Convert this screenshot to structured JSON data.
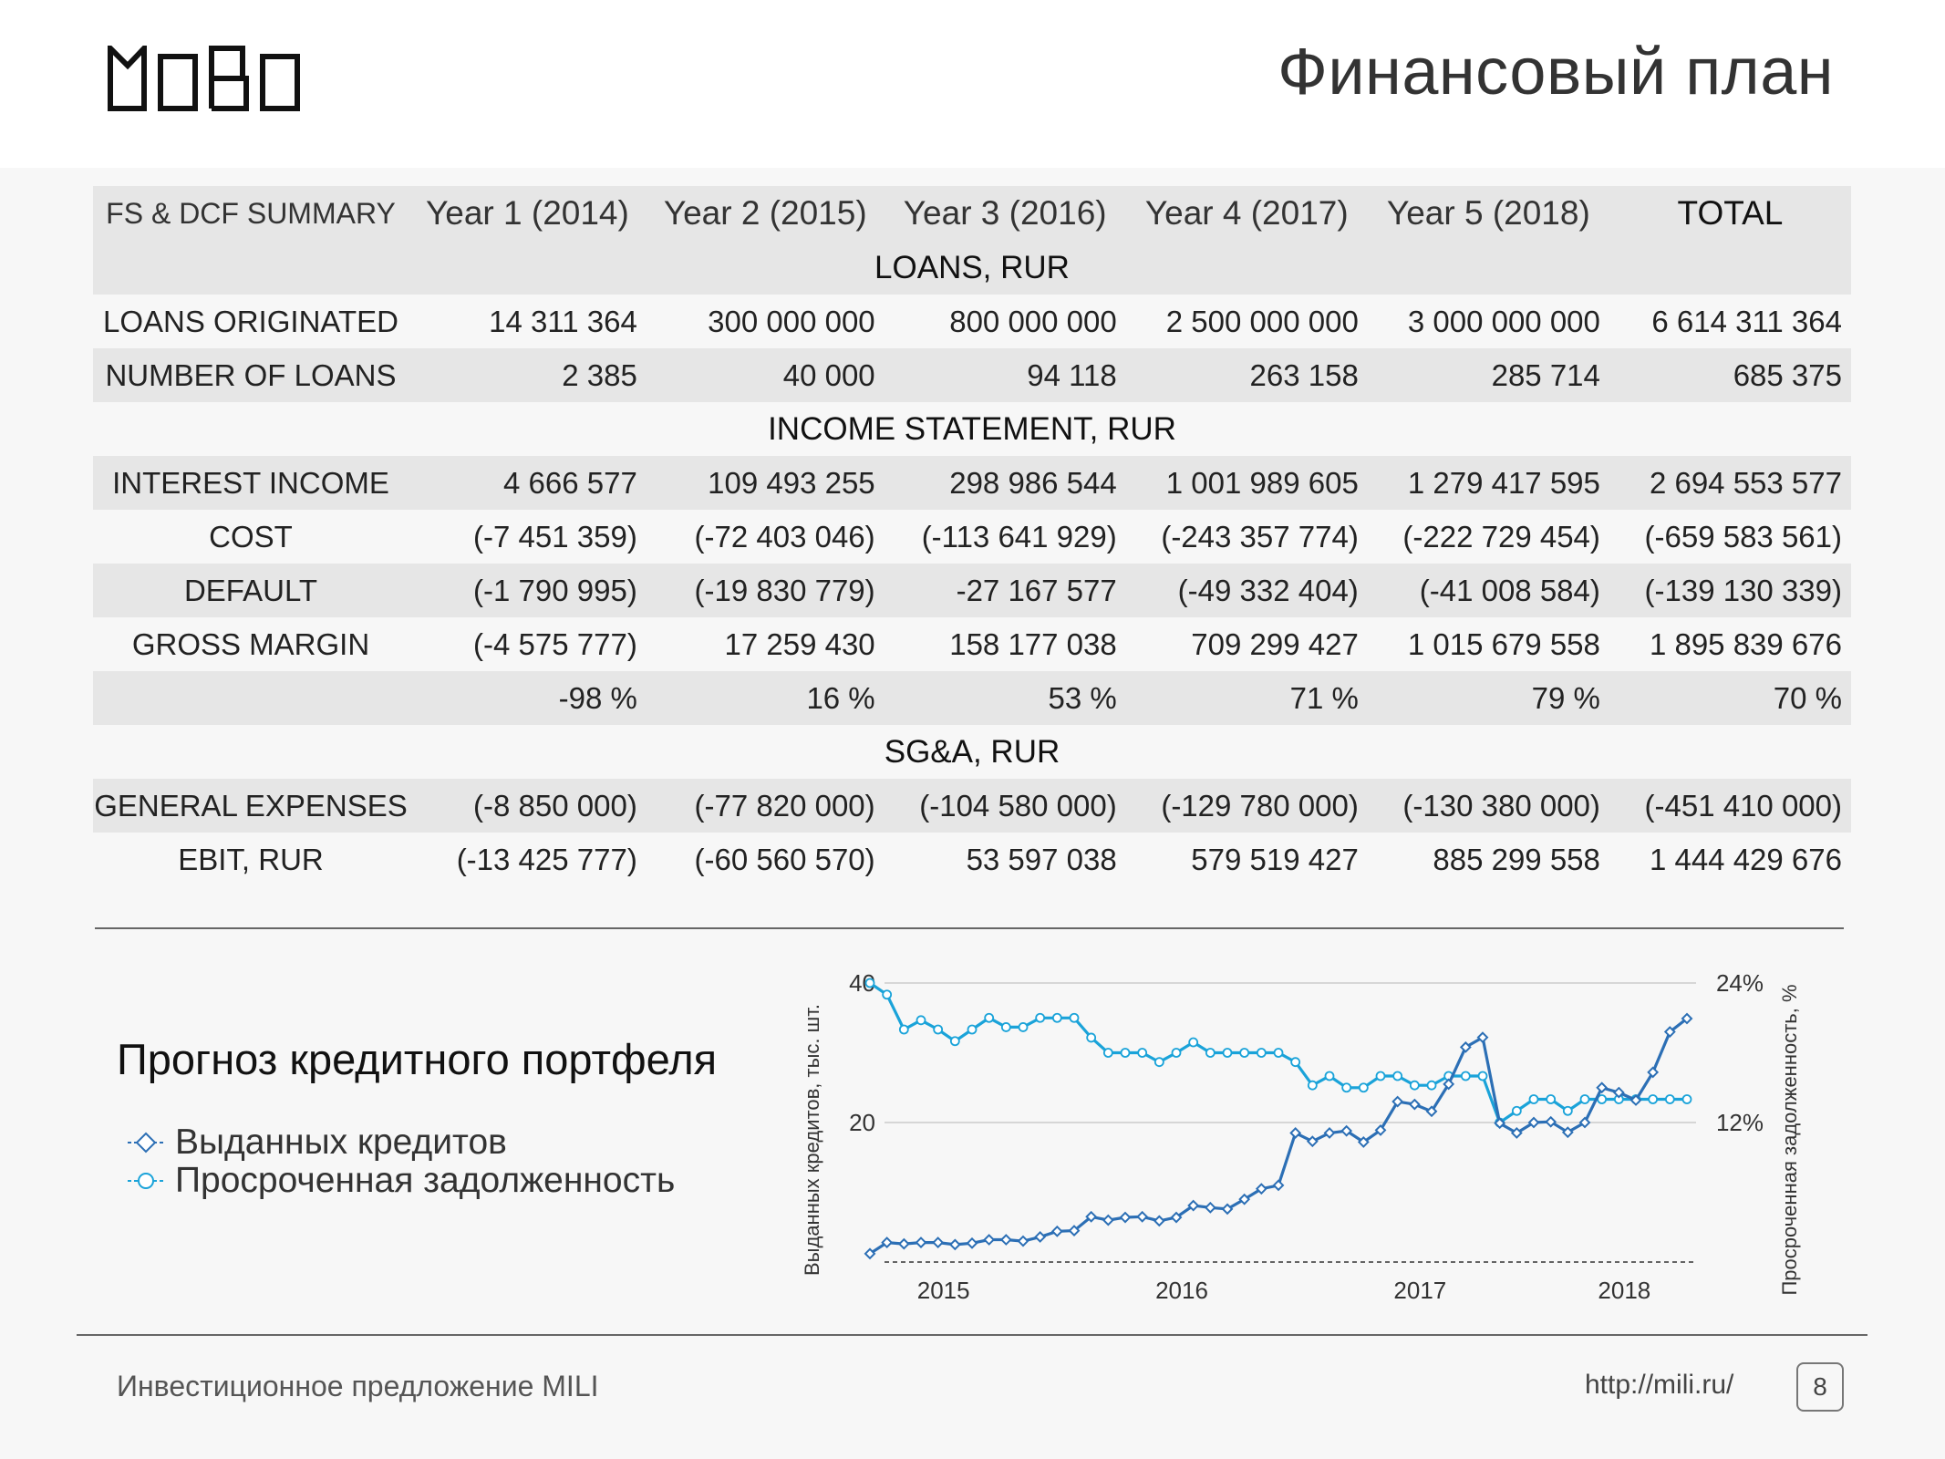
{
  "header": {
    "logo_text": "MILI",
    "title": "Финансовый план"
  },
  "table": {
    "header": {
      "label": "FS & DCF  SUMMARY",
      "years": [
        "Year 1 (2014)",
        "Year 2 (2015)",
        "Year 3 (2016)",
        "Year 4 (2017)",
        "Year 5 (2018)"
      ],
      "total": "TOTAL"
    },
    "sections": {
      "loans": "LOANS, RUR",
      "income": "INCOME STATEMENT, RUR",
      "sga": "SG&A, RUR"
    },
    "rows": {
      "loans_originated": {
        "label": "LOANS ORIGINATED",
        "values": [
          "14 311 364",
          "300 000 000",
          "800 000 000",
          "2 500 000 000",
          "3 000 000 000",
          "6 614 311 364"
        ]
      },
      "number_of_loans": {
        "label": "NUMBER OF LOANS",
        "values": [
          "2 385",
          "40 000",
          "94 118",
          "263 158",
          "285 714",
          "685 375"
        ]
      },
      "interest_income": {
        "label": "INTEREST INCOME",
        "values": [
          "4 666 577",
          "109 493 255",
          "298 986 544",
          "1 001 989 605",
          "1 279 417 595",
          "2 694 553 577"
        ]
      },
      "cost": {
        "label": "COST",
        "values": [
          "(-7 451 359)",
          "(-72 403 046)",
          "(-113 641 929)",
          "(-243 357 774)",
          "(-222 729 454)",
          "(-659 583 561)"
        ]
      },
      "default": {
        "label": "DEFAULT",
        "values": [
          "(-1 790 995)",
          "(-19 830 779)",
          "-27 167 577",
          "(-49 332 404)",
          "(-41 008 584)",
          "(-139 130 339)"
        ]
      },
      "gross_margin": {
        "label": "GROSS MARGIN",
        "values": [
          "(-4 575 777)",
          "17 259 430",
          "158 177 038",
          "709 299 427",
          "1 015 679 558",
          "1 895 839 676"
        ]
      },
      "gross_margin_pct": {
        "label": "",
        "values": [
          "-98 %",
          "16 %",
          "53 %",
          "71 %",
          "79 %",
          "70 %"
        ]
      },
      "general_expenses": {
        "label": "GENERAL EXPENSES",
        "values": [
          "(-8 850 000)",
          "(-77 820 000)",
          "(-104 580 000)",
          "(-129 780 000)",
          "(-130 380 000)",
          "(-451 410 000)"
        ]
      },
      "ebit": {
        "label": "EBIT, RUR",
        "values": [
          "(-13 425 777)",
          "(-60 560 570)",
          "53 597 038",
          "579 519 427",
          "885 299 558",
          "1 444 429 676"
        ]
      }
    }
  },
  "portfolio": {
    "title": "Прогноз кредитного портфеля",
    "legend": [
      "Выданных кредитов",
      "Просроченная задолженность"
    ]
  },
  "chart_data": {
    "type": "line",
    "y_left_label": "Выданных кредитов, тыс. шт.",
    "y_right_label": "Просроченная задолженность, %",
    "y_left_ticks": [
      "40",
      "20"
    ],
    "y_right_ticks": [
      "24%",
      "12%"
    ],
    "ylim_left": [
      0,
      40
    ],
    "ylim_right": [
      0,
      24
    ],
    "x_tick_labels": [
      "2015",
      "2016",
      "2017",
      "2018"
    ],
    "series": [
      {
        "name": "Выданных кредитов",
        "axis": "left",
        "color": "#2c6fb5",
        "values": [
          1.2,
          2.8,
          2.6,
          2.8,
          2.8,
          2.5,
          2.7,
          3.2,
          3.2,
          3.0,
          3.6,
          4.4,
          4.5,
          6.5,
          6.0,
          6.4,
          6.5,
          5.9,
          6.4,
          8.1,
          7.8,
          7.6,
          9.0,
          10.5,
          11.0,
          18.5,
          17.3,
          18.5,
          18.8,
          17.2,
          18.9,
          23.0,
          22.6,
          21.6,
          25.5,
          30.8,
          32.2,
          19.9,
          18.5,
          20.0,
          20.1,
          18.6,
          20.0,
          25.0,
          24.3,
          23.2,
          27.2,
          33.0,
          34.9
        ]
      },
      {
        "name": "Просроченная задолженность",
        "axis": "right",
        "color": "#1aa3d9",
        "values": [
          24.0,
          23.0,
          20.0,
          20.8,
          20.0,
          19.0,
          20.0,
          21.0,
          20.2,
          20.2,
          21.0,
          21.0,
          21.0,
          19.3,
          18.0,
          18.0,
          18.0,
          17.2,
          18.0,
          18.9,
          18.0,
          18.0,
          18.0,
          18.0,
          18.0,
          17.2,
          15.2,
          16.0,
          15.0,
          15.0,
          16.0,
          16.0,
          15.2,
          15.2,
          16.0,
          16.0,
          16.0,
          12.0,
          13.0,
          14.0,
          14.0,
          13.0,
          14.0,
          14.0,
          14.0,
          14.0,
          14.0,
          14.0,
          14.0
        ]
      }
    ]
  },
  "footer": {
    "left": "Инвестиционное предложение MILI",
    "url": "http://mili.ru/",
    "page": "8"
  }
}
